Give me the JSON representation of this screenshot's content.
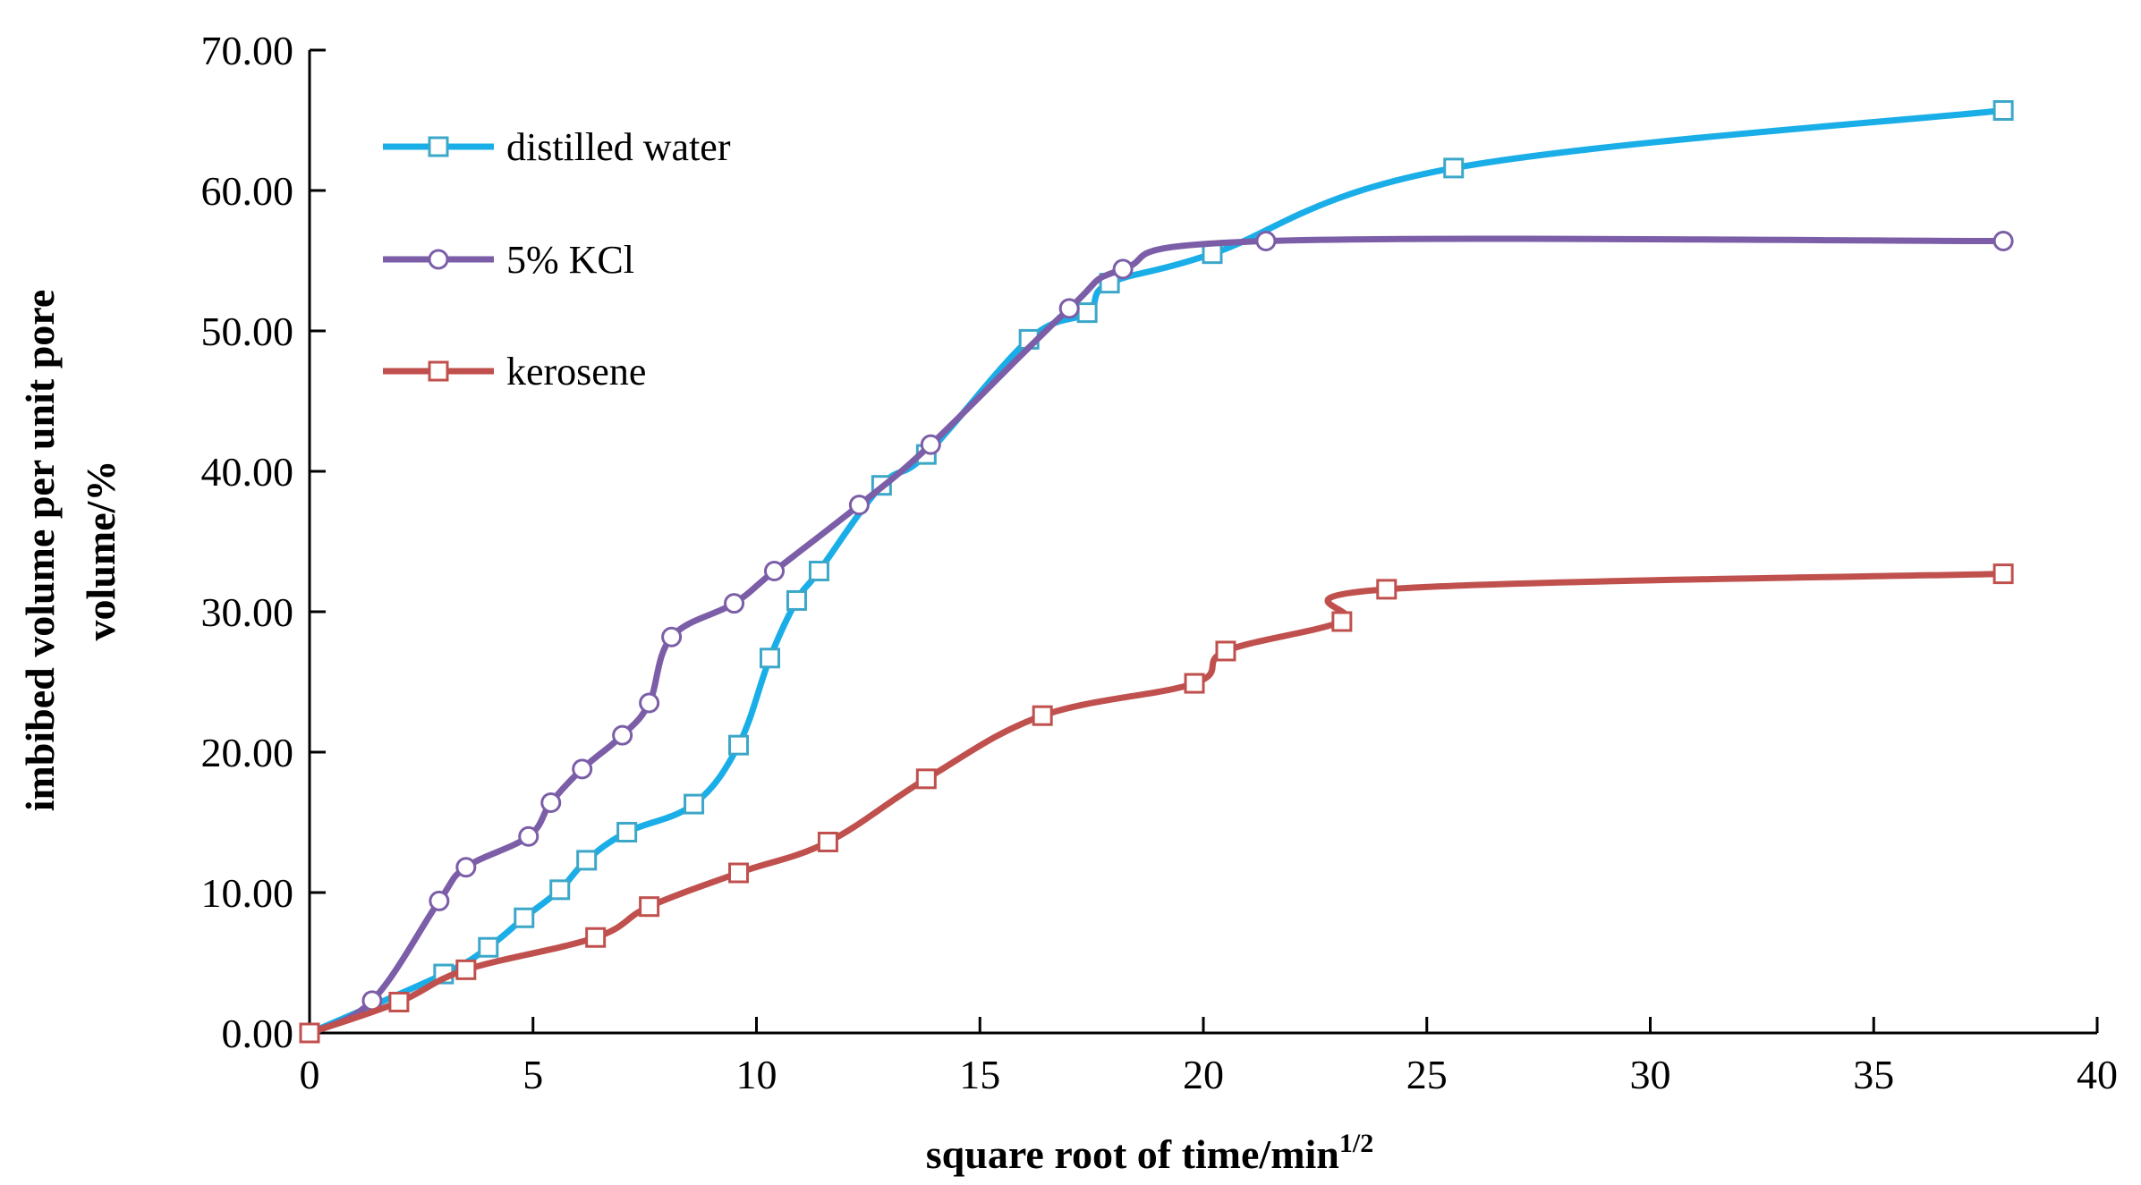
{
  "chart_data": {
    "type": "line",
    "title": "",
    "xlabel": "square root of time/min",
    "xlabel_superscript": "1/2",
    "ylabel_line1": "imbibed volume per unit pore",
    "ylabel_line2": "volume/%",
    "xlim": [
      0,
      40
    ],
    "ylim": [
      0,
      70
    ],
    "x_ticks": [
      0,
      5,
      10,
      15,
      20,
      25,
      30,
      35,
      40
    ],
    "x_tick_labels": [
      "0",
      "5",
      "10",
      "15",
      "20",
      "25",
      "30",
      "35",
      "40"
    ],
    "y_ticks": [
      0,
      10,
      20,
      30,
      40,
      50,
      60,
      70
    ],
    "y_tick_labels": [
      "0.00",
      "10.00",
      "20.00",
      "30.00",
      "40.00",
      "50.00",
      "60.00",
      "70.00"
    ],
    "grid": false,
    "legend_position": "top-left",
    "series": [
      {
        "name": "distilled water",
        "color": "#1aaee8",
        "marker": "square",
        "marker_color": "#3ca7c8",
        "x": [
          0,
          3,
          4,
          4.8,
          5.6,
          6.2,
          7.1,
          8.6,
          9.6,
          10.3,
          10.9,
          11.4,
          12.8,
          13.8,
          16.1,
          17.4,
          17.9,
          20.2,
          25.6,
          37.9
        ],
        "y": [
          0,
          4.2,
          6.1,
          8.2,
          10.2,
          12.3,
          14.3,
          16.3,
          20.5,
          26.7,
          30.8,
          32.9,
          39,
          41.2,
          49.4,
          51.3,
          53.4,
          55.5,
          61.6,
          65.7
        ]
      },
      {
        "name": "5% KCl",
        "color": "#7b5ea7",
        "marker": "circle",
        "marker_color": "#7b5ea7",
        "x": [
          0,
          1.4,
          2.9,
          3.5,
          4.9,
          5.4,
          6.1,
          7,
          7.6,
          8.1,
          9.5,
          10.4,
          12.3,
          13.9,
          17,
          18.2,
          21.4,
          37.9
        ],
        "y": [
          0,
          2.3,
          9.4,
          11.8,
          14,
          16.4,
          18.8,
          21.2,
          23.5,
          28.2,
          30.6,
          32.9,
          37.6,
          41.9,
          51.6,
          54.4,
          56.4,
          56.4
        ]
      },
      {
        "name": "kerosene",
        "color": "#c0504d",
        "marker": "square",
        "marker_color": "#c0504d",
        "x": [
          0,
          2,
          3.5,
          6.4,
          7.6,
          9.6,
          11.6,
          13.8,
          16.4,
          19.8,
          20.5,
          23.1,
          24.1,
          37.9
        ],
        "y": [
          0,
          2.2,
          4.5,
          6.8,
          9,
          11.4,
          13.6,
          18.1,
          22.6,
          24.9,
          27.2,
          29.3,
          31.6,
          32.7
        ]
      }
    ]
  }
}
